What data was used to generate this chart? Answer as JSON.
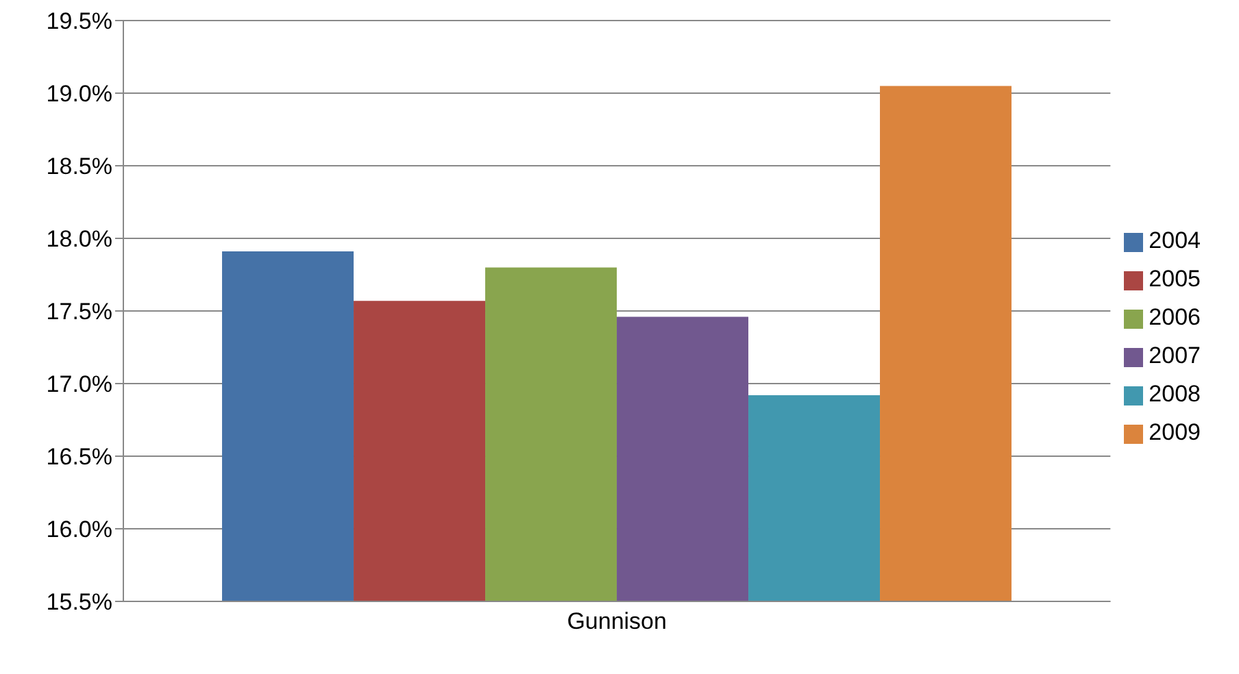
{
  "chart_data": {
    "type": "bar",
    "categories": [
      "Gunnison"
    ],
    "series": [
      {
        "name": "2004",
        "color": "#4572a7",
        "values": [
          17.91
        ]
      },
      {
        "name": "2005",
        "color": "#aa4643",
        "values": [
          17.57
        ]
      },
      {
        "name": "2006",
        "color": "#89a54e",
        "values": [
          17.8
        ]
      },
      {
        "name": "2007",
        "color": "#71588f",
        "values": [
          17.46
        ]
      },
      {
        "name": "2008",
        "color": "#4198af",
        "values": [
          16.92
        ]
      },
      {
        "name": "2009",
        "color": "#db843d",
        "values": [
          19.05
        ]
      }
    ],
    "ylim": [
      15.5,
      19.5
    ],
    "yticks": [
      {
        "value": 15.5,
        "label": "15.5%"
      },
      {
        "value": 16,
        "label": "16.0%"
      },
      {
        "value": 16.5,
        "label": "16.5%"
      },
      {
        "value": 17,
        "label": "17.0%"
      },
      {
        "value": 17.5,
        "label": "17.5%"
      },
      {
        "value": 18,
        "label": "18.0%"
      },
      {
        "value": 18.5,
        "label": "18.5%"
      },
      {
        "value": 19,
        "label": "19.0%"
      },
      {
        "value": 19.5,
        "label": "19.5%"
      }
    ],
    "grid": "y",
    "legend": "right"
  }
}
